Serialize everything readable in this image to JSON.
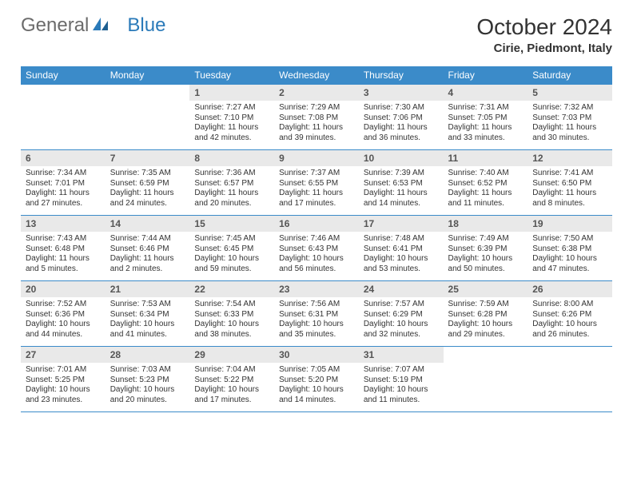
{
  "brand": {
    "part1": "General",
    "part2": "Blue"
  },
  "title": "October 2024",
  "location": "Cirie, Piedmont, Italy",
  "colors": {
    "header_bg": "#3b8bc9",
    "header_text": "#ffffff",
    "daynum_bg": "#e9e9e9",
    "border": "#3b8bc9",
    "logo_gray": "#6b6b6b",
    "logo_blue": "#2a7ab9",
    "text": "#333333"
  },
  "typography": {
    "title_fontsize": 28,
    "location_fontsize": 15,
    "header_fontsize": 12,
    "daynum_fontsize": 12,
    "body_fontsize": 10
  },
  "weekdays": [
    "Sunday",
    "Monday",
    "Tuesday",
    "Wednesday",
    "Thursday",
    "Friday",
    "Saturday"
  ],
  "weeks": [
    [
      {
        "empty": true
      },
      {
        "empty": true
      },
      {
        "num": "1",
        "sunrise": "7:27 AM",
        "sunset": "7:10 PM",
        "daylight": "11 hours and 42 minutes."
      },
      {
        "num": "2",
        "sunrise": "7:29 AM",
        "sunset": "7:08 PM",
        "daylight": "11 hours and 39 minutes."
      },
      {
        "num": "3",
        "sunrise": "7:30 AM",
        "sunset": "7:06 PM",
        "daylight": "11 hours and 36 minutes."
      },
      {
        "num": "4",
        "sunrise": "7:31 AM",
        "sunset": "7:05 PM",
        "daylight": "11 hours and 33 minutes."
      },
      {
        "num": "5",
        "sunrise": "7:32 AM",
        "sunset": "7:03 PM",
        "daylight": "11 hours and 30 minutes."
      }
    ],
    [
      {
        "num": "6",
        "sunrise": "7:34 AM",
        "sunset": "7:01 PM",
        "daylight": "11 hours and 27 minutes."
      },
      {
        "num": "7",
        "sunrise": "7:35 AM",
        "sunset": "6:59 PM",
        "daylight": "11 hours and 24 minutes."
      },
      {
        "num": "8",
        "sunrise": "7:36 AM",
        "sunset": "6:57 PM",
        "daylight": "11 hours and 20 minutes."
      },
      {
        "num": "9",
        "sunrise": "7:37 AM",
        "sunset": "6:55 PM",
        "daylight": "11 hours and 17 minutes."
      },
      {
        "num": "10",
        "sunrise": "7:39 AM",
        "sunset": "6:53 PM",
        "daylight": "11 hours and 14 minutes."
      },
      {
        "num": "11",
        "sunrise": "7:40 AM",
        "sunset": "6:52 PM",
        "daylight": "11 hours and 11 minutes."
      },
      {
        "num": "12",
        "sunrise": "7:41 AM",
        "sunset": "6:50 PM",
        "daylight": "11 hours and 8 minutes."
      }
    ],
    [
      {
        "num": "13",
        "sunrise": "7:43 AM",
        "sunset": "6:48 PM",
        "daylight": "11 hours and 5 minutes."
      },
      {
        "num": "14",
        "sunrise": "7:44 AM",
        "sunset": "6:46 PM",
        "daylight": "11 hours and 2 minutes."
      },
      {
        "num": "15",
        "sunrise": "7:45 AM",
        "sunset": "6:45 PM",
        "daylight": "10 hours and 59 minutes."
      },
      {
        "num": "16",
        "sunrise": "7:46 AM",
        "sunset": "6:43 PM",
        "daylight": "10 hours and 56 minutes."
      },
      {
        "num": "17",
        "sunrise": "7:48 AM",
        "sunset": "6:41 PM",
        "daylight": "10 hours and 53 minutes."
      },
      {
        "num": "18",
        "sunrise": "7:49 AM",
        "sunset": "6:39 PM",
        "daylight": "10 hours and 50 minutes."
      },
      {
        "num": "19",
        "sunrise": "7:50 AM",
        "sunset": "6:38 PM",
        "daylight": "10 hours and 47 minutes."
      }
    ],
    [
      {
        "num": "20",
        "sunrise": "7:52 AM",
        "sunset": "6:36 PM",
        "daylight": "10 hours and 44 minutes."
      },
      {
        "num": "21",
        "sunrise": "7:53 AM",
        "sunset": "6:34 PM",
        "daylight": "10 hours and 41 minutes."
      },
      {
        "num": "22",
        "sunrise": "7:54 AM",
        "sunset": "6:33 PM",
        "daylight": "10 hours and 38 minutes."
      },
      {
        "num": "23",
        "sunrise": "7:56 AM",
        "sunset": "6:31 PM",
        "daylight": "10 hours and 35 minutes."
      },
      {
        "num": "24",
        "sunrise": "7:57 AM",
        "sunset": "6:29 PM",
        "daylight": "10 hours and 32 minutes."
      },
      {
        "num": "25",
        "sunrise": "7:59 AM",
        "sunset": "6:28 PM",
        "daylight": "10 hours and 29 minutes."
      },
      {
        "num": "26",
        "sunrise": "8:00 AM",
        "sunset": "6:26 PM",
        "daylight": "10 hours and 26 minutes."
      }
    ],
    [
      {
        "num": "27",
        "sunrise": "7:01 AM",
        "sunset": "5:25 PM",
        "daylight": "10 hours and 23 minutes."
      },
      {
        "num": "28",
        "sunrise": "7:03 AM",
        "sunset": "5:23 PM",
        "daylight": "10 hours and 20 minutes."
      },
      {
        "num": "29",
        "sunrise": "7:04 AM",
        "sunset": "5:22 PM",
        "daylight": "10 hours and 17 minutes."
      },
      {
        "num": "30",
        "sunrise": "7:05 AM",
        "sunset": "5:20 PM",
        "daylight": "10 hours and 14 minutes."
      },
      {
        "num": "31",
        "sunrise": "7:07 AM",
        "sunset": "5:19 PM",
        "daylight": "10 hours and 11 minutes."
      },
      {
        "empty": true
      },
      {
        "empty": true
      }
    ]
  ],
  "labels": {
    "sunrise_prefix": "Sunrise: ",
    "sunset_prefix": "Sunset: ",
    "daylight_prefix": "Daylight: "
  }
}
